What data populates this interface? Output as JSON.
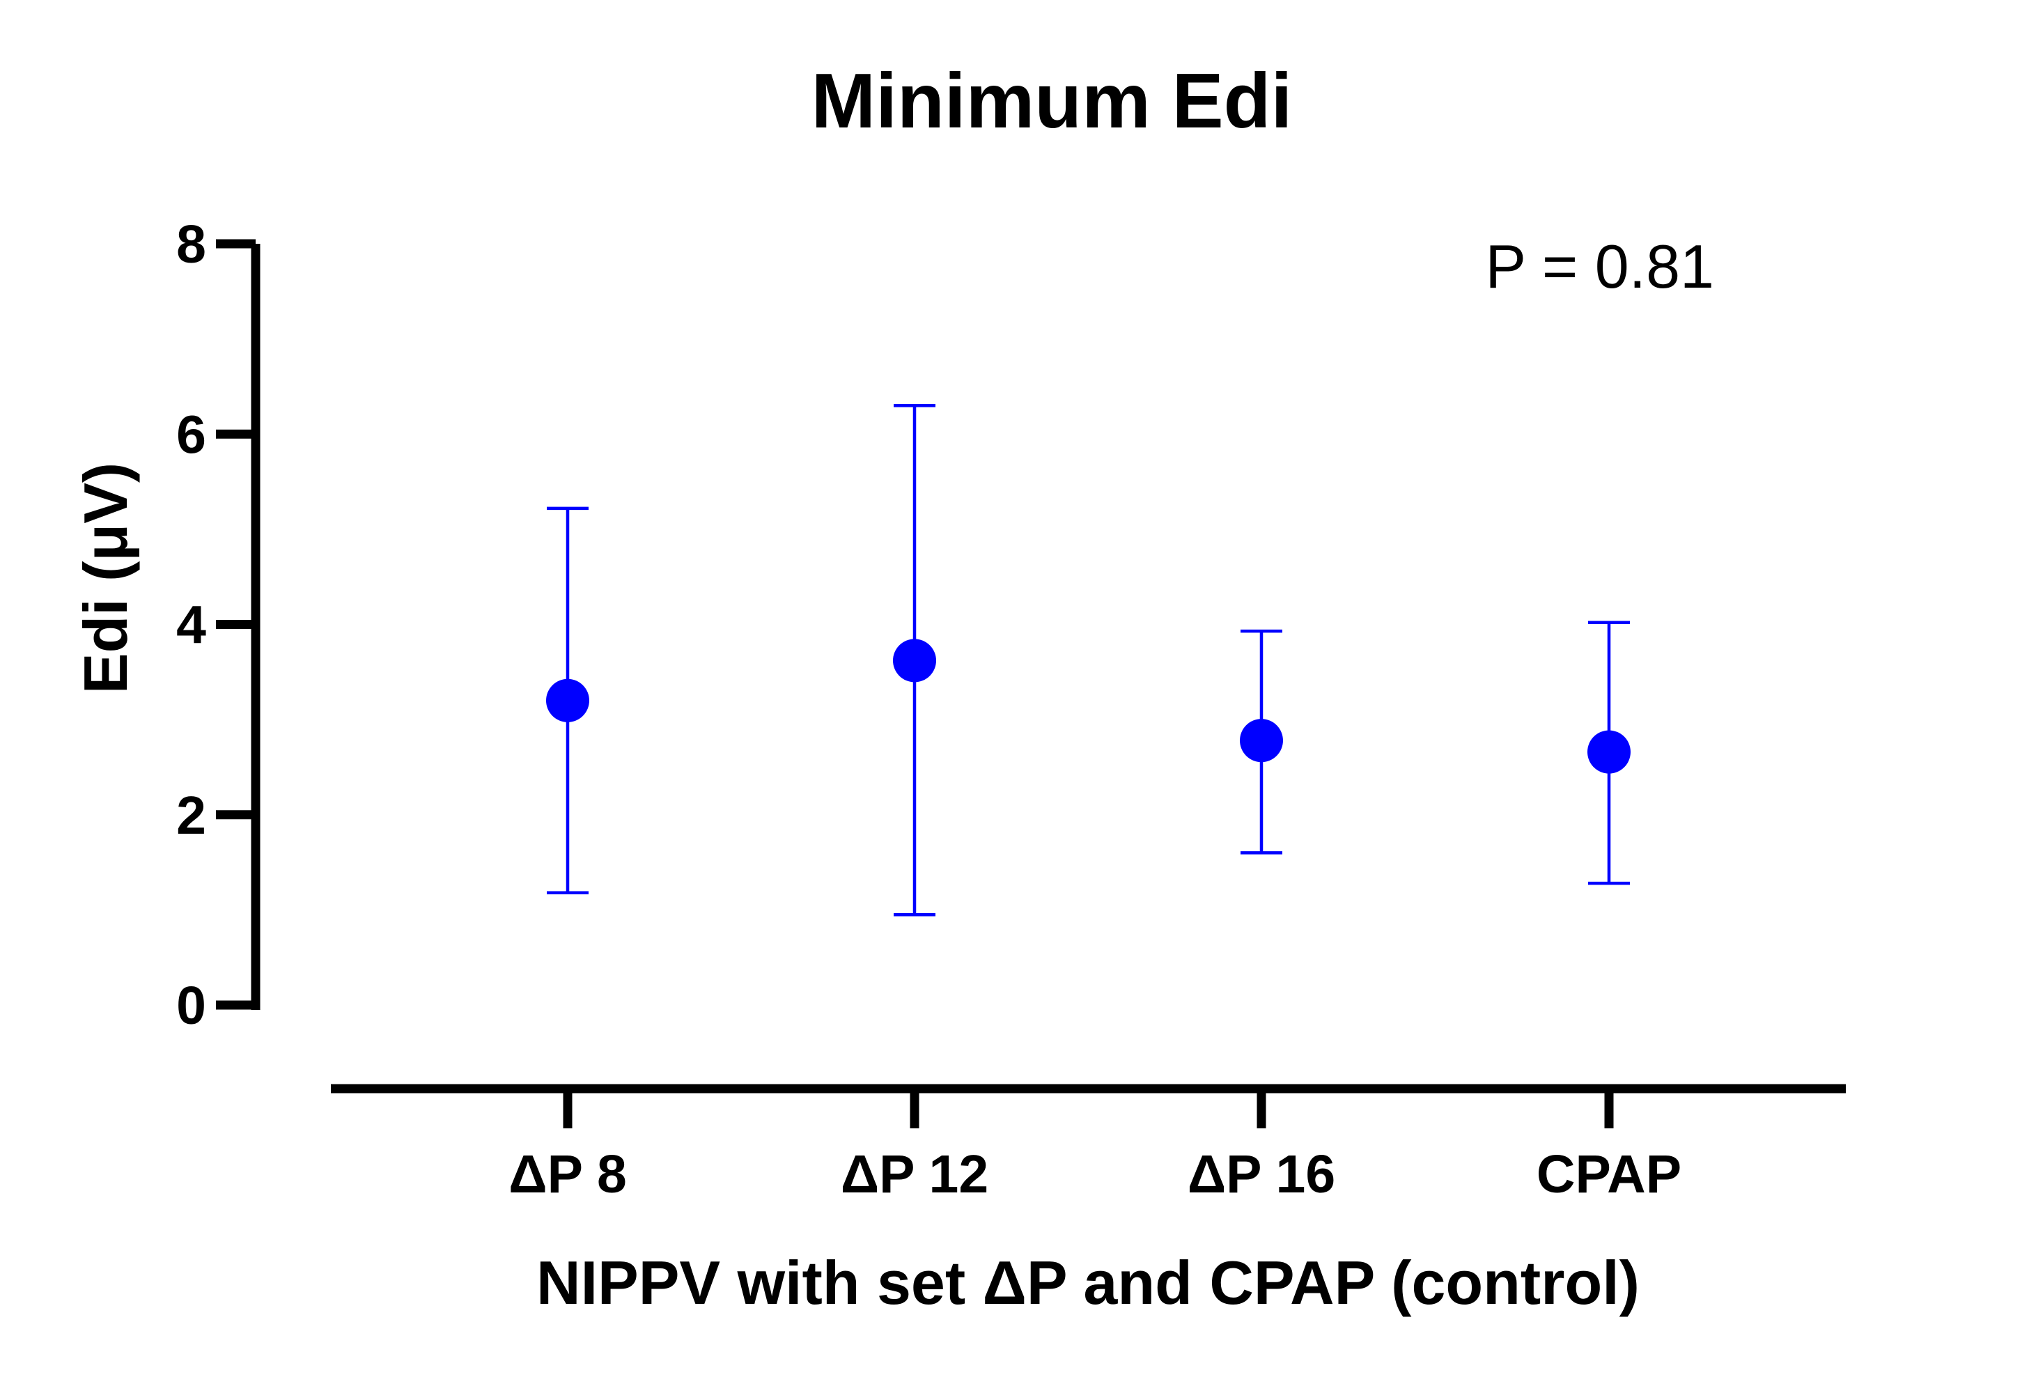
{
  "chart_data": {
    "type": "scatter",
    "title": "Minimum Edi",
    "xlabel": "NIPPV with set ΔP and CPAP (control)",
    "ylabel": "Edi (μV)",
    "categories": [
      "ΔP 8",
      "ΔP 12",
      "ΔP 16",
      "CPAP"
    ],
    "ylim": [
      0,
      8
    ],
    "yticks": [
      0,
      2,
      4,
      6,
      8
    ],
    "grid": false,
    "series": [
      {
        "values": [
          3.2,
          3.62,
          2.78,
          2.66
        ],
        "error_low": [
          1.18,
          0.95,
          1.6,
          1.28
        ],
        "error_high": [
          5.22,
          6.3,
          3.93,
          4.02
        ],
        "color": "#0000ff"
      }
    ],
    "annotations": [
      {
        "text": "P = 0.81"
      }
    ]
  }
}
